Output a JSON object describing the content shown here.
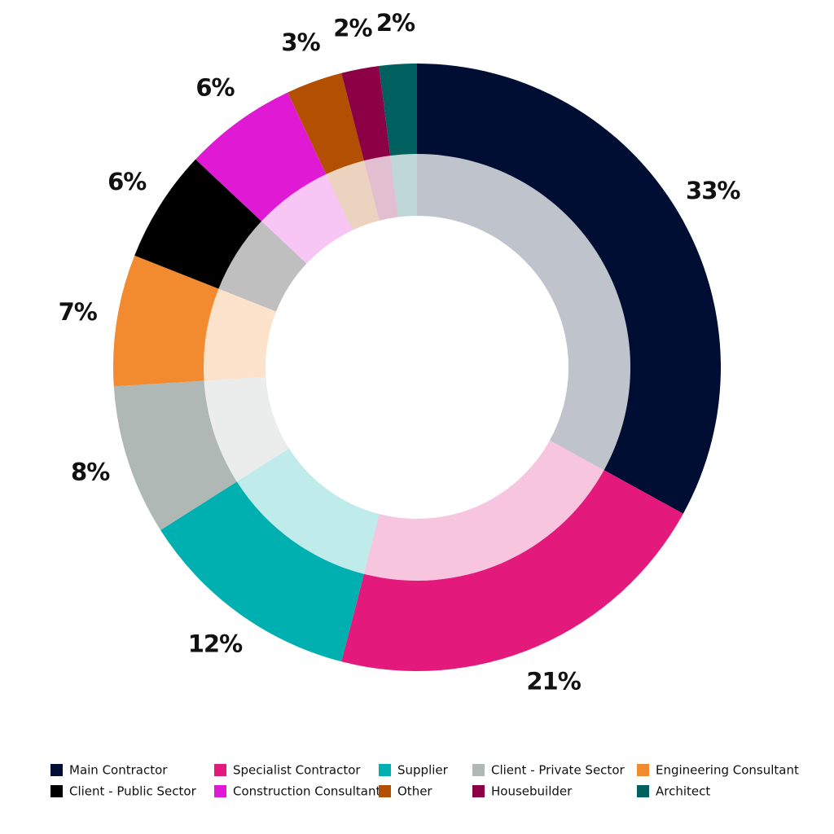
{
  "chart_data": {
    "type": "donut",
    "categories": [
      "Main Contractor",
      "Specialist Contractor",
      "Supplier",
      "Client - Private Sector",
      "Engineering Consultant",
      "Client - Public Sector",
      "Construction Consultant",
      "Other",
      "Housebuilder",
      "Architect"
    ],
    "values": [
      33,
      21,
      12,
      8,
      7,
      6,
      6,
      3,
      2,
      2
    ],
    "value_labels": [
      "33%",
      "21%",
      "12%",
      "8%",
      "7%",
      "6%",
      "6%",
      "3%",
      "2%",
      "2%"
    ],
    "colors": [
      "#000e33",
      "#e3197b",
      "#00b0b0",
      "#b0b8b5",
      "#f28a30",
      "#000000",
      "#e01ad4",
      "#b34f00",
      "#8c0045",
      "#005f5f"
    ],
    "legend": "bottom"
  }
}
